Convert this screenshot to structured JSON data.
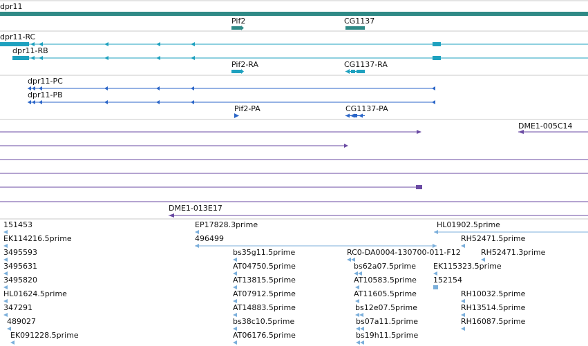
{
  "colors": {
    "gene": "#2f8a86",
    "transcript": "#1ea1bf",
    "protein": "#2b66c8",
    "clone": "#6a4aa3",
    "est": "#7bafdb",
    "separator": "#c8c8c8"
  },
  "gene_track": {
    "main_label": "dpr11",
    "features": [
      {
        "name": "Pif2"
      },
      {
        "name": "CG1137"
      }
    ]
  },
  "transcript_track": {
    "features": [
      {
        "name": "dpr11-RC"
      },
      {
        "name": "dpr11-RB"
      },
      {
        "name": "Pif2-RA"
      },
      {
        "name": "CG1137-RA"
      }
    ]
  },
  "protein_track": {
    "features": [
      {
        "name": "dpr11-PC"
      },
      {
        "name": "dpr11-PB"
      },
      {
        "name": "Pif2-PA"
      },
      {
        "name": "CG1137-PA"
      }
    ]
  },
  "clone_track": {
    "features": [
      {
        "name": "DME1-005C14"
      },
      {
        "name": "DME1-013E17"
      }
    ]
  },
  "est_track": {
    "features": [
      {
        "name": "151453"
      },
      {
        "name": "EK114216.5prime"
      },
      {
        "name": "3495593"
      },
      {
        "name": "3495631"
      },
      {
        "name": "3495820"
      },
      {
        "name": "HL01624.5prime"
      },
      {
        "name": "347291"
      },
      {
        "name": "489027"
      },
      {
        "name": "EK091228.5prime"
      },
      {
        "name": "EP17828.3prime"
      },
      {
        "name": "496499"
      },
      {
        "name": "bs35g11.5prime"
      },
      {
        "name": "AT04750.5prime"
      },
      {
        "name": "AT13815.5prime"
      },
      {
        "name": "AT07912.5prime"
      },
      {
        "name": "AT14883.5prime"
      },
      {
        "name": "bs38c10.5prime"
      },
      {
        "name": "AT06176.5prime"
      },
      {
        "name": "RC0-DA0004-130700-011-F12"
      },
      {
        "name": "bs62a07.5prime"
      },
      {
        "name": "AT10583.5prime"
      },
      {
        "name": "AT11605.5prime"
      },
      {
        "name": "bs12e07.5prime"
      },
      {
        "name": "bs07a11.5prime"
      },
      {
        "name": "bs19h11.5prime"
      },
      {
        "name": "HL01902.5prime"
      },
      {
        "name": "RH52471.5prime"
      },
      {
        "name": "RH52471.3prime"
      },
      {
        "name": "EK115323.5prime"
      },
      {
        "name": "152154"
      },
      {
        "name": "RH10032.5prime"
      },
      {
        "name": "RH13514.5prime"
      },
      {
        "name": "RH16087.5prime"
      }
    ]
  }
}
